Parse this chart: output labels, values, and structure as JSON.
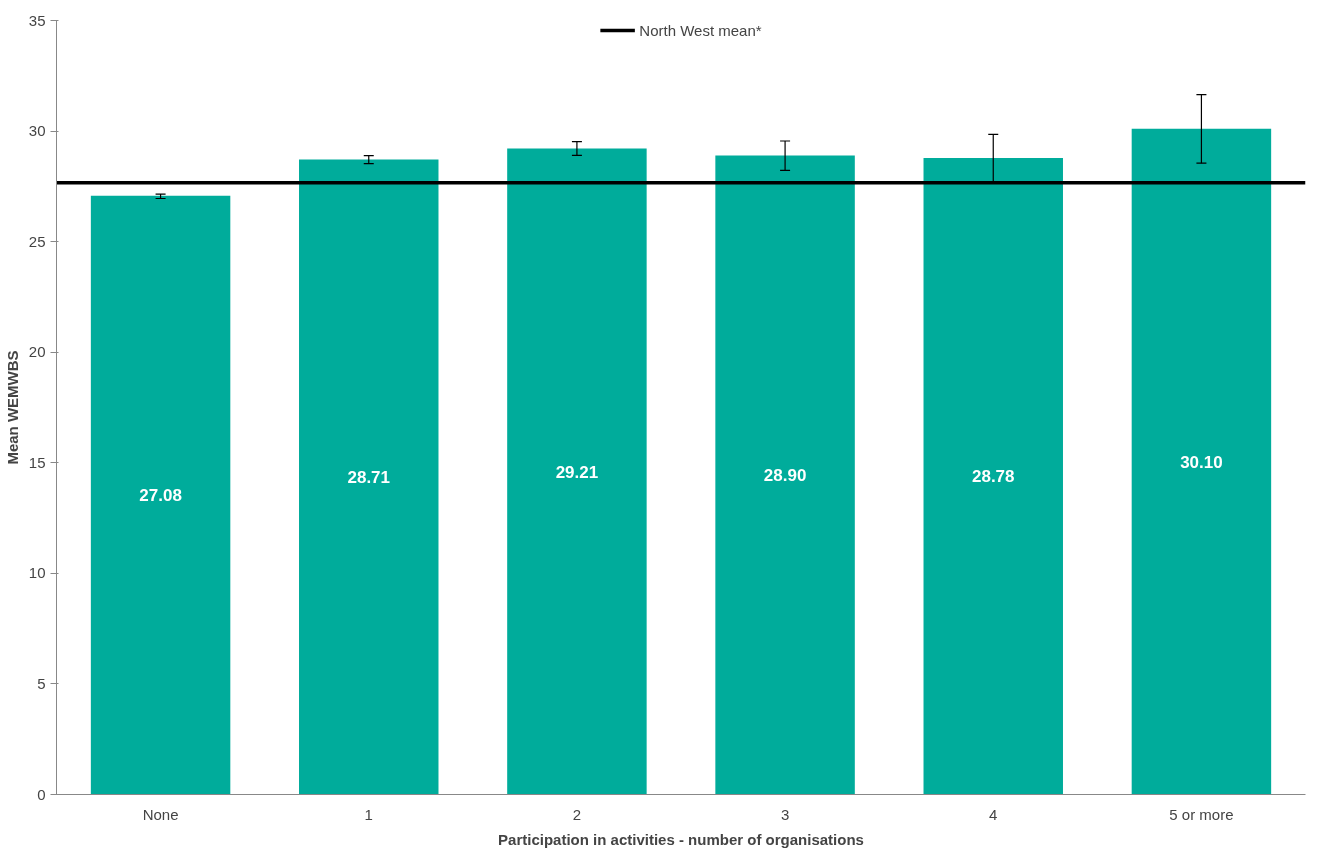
{
  "chart_data": {
    "type": "bar",
    "xlabel": "Participation in activities - number of organisations",
    "ylabel": "Mean WEMWBS",
    "categories": [
      "None",
      "1",
      "2",
      "3",
      "4",
      "5 or more"
    ],
    "values": [
      27.08,
      28.71,
      29.21,
      28.9,
      28.78,
      30.1
    ],
    "color": "#00ac9b",
    "errors": [
      [
        26.95,
        27.15
      ],
      [
        28.53,
        28.89
      ],
      [
        28.9,
        29.52
      ],
      [
        28.22,
        29.55
      ],
      [
        27.65,
        29.85
      ],
      [
        28.55,
        31.65
      ]
    ],
    "value_labels": [
      "27.08",
      "28.71",
      "29.21",
      "28.90",
      "28.78",
      "30.10"
    ],
    "ref_lines": [
      {
        "axis": "y",
        "value": 27.66,
        "label": "North West mean*",
        "color": "#000000"
      }
    ],
    "ylim": [
      0,
      35
    ],
    "yticks": [
      0,
      5,
      10,
      15,
      20,
      25,
      30,
      35
    ],
    "grid": false,
    "legend": "top"
  }
}
